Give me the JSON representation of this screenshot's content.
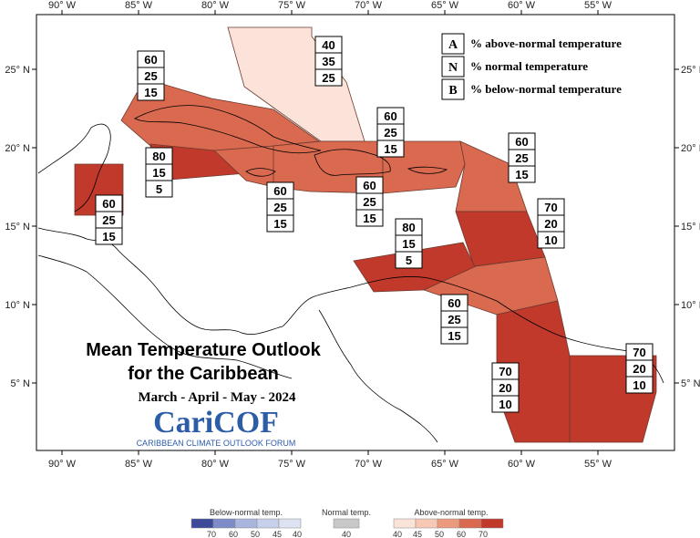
{
  "map": {
    "x_labels": [
      "90° W",
      "85° W",
      "80° W",
      "75° W",
      "70° W",
      "65° W",
      "60° W",
      "55° W"
    ],
    "y_labels": [
      "25° N",
      "20° N",
      "15° N",
      "10° N",
      "5° N"
    ],
    "title_line1": "Mean Temperature Outlook",
    "title_line2": "for the Caribbean",
    "period": "March - April - May - 2024",
    "logo_text": "CariCOF",
    "logo_subtext": "CARIBBEAN CLIMATE OUTLOOK FORUM",
    "colors": {
      "above_40": "#fbe3da",
      "above_45": "#f7c8b4",
      "above_50": "#ec9a7d",
      "above_60": "#d9694f",
      "above_70": "#c0392b",
      "normal_40": "#c8c8c8",
      "below_40": "#dde3f1",
      "below_45": "#c6d0ea",
      "below_50": "#a8b6de",
      "below_60": "#7d8cc8",
      "below_70": "#3d4a9a"
    }
  },
  "key": {
    "rows": [
      {
        "letter": "A",
        "text": "% above-normal temperature"
      },
      {
        "letter": "N",
        "text": "% normal temperature"
      },
      {
        "letter": "B",
        "text": "% below-normal temperature"
      }
    ]
  },
  "prob_boxes": [
    {
      "values": [
        "40",
        "35",
        "25"
      ]
    },
    {
      "values": [
        "60",
        "25",
        "15"
      ]
    },
    {
      "values": [
        "60",
        "25",
        "15"
      ]
    },
    {
      "values": [
        "60",
        "25",
        "15"
      ]
    },
    {
      "values": [
        "80",
        "15",
        "5"
      ]
    },
    {
      "values": [
        "60",
        "25",
        "15"
      ]
    },
    {
      "values": [
        "60",
        "25",
        "15"
      ]
    },
    {
      "values": [
        "60",
        "25",
        "15"
      ]
    },
    {
      "values": [
        "70",
        "20",
        "10"
      ]
    },
    {
      "values": [
        "80",
        "15",
        "5"
      ]
    },
    {
      "values": [
        "60",
        "25",
        "15"
      ]
    },
    {
      "values": [
        "70",
        "20",
        "10"
      ]
    },
    {
      "values": [
        "70",
        "20",
        "10"
      ]
    }
  ],
  "colorbar": {
    "below": {
      "title": "Below-normal temp.",
      "ticks": [
        "70",
        "60",
        "50",
        "45",
        "40"
      ]
    },
    "normal": {
      "title": "Normal temp.",
      "ticks": [
        "40"
      ]
    },
    "above": {
      "title": "Above-normal temp.",
      "ticks": [
        "40",
        "45",
        "50",
        "60",
        "70"
      ]
    }
  }
}
